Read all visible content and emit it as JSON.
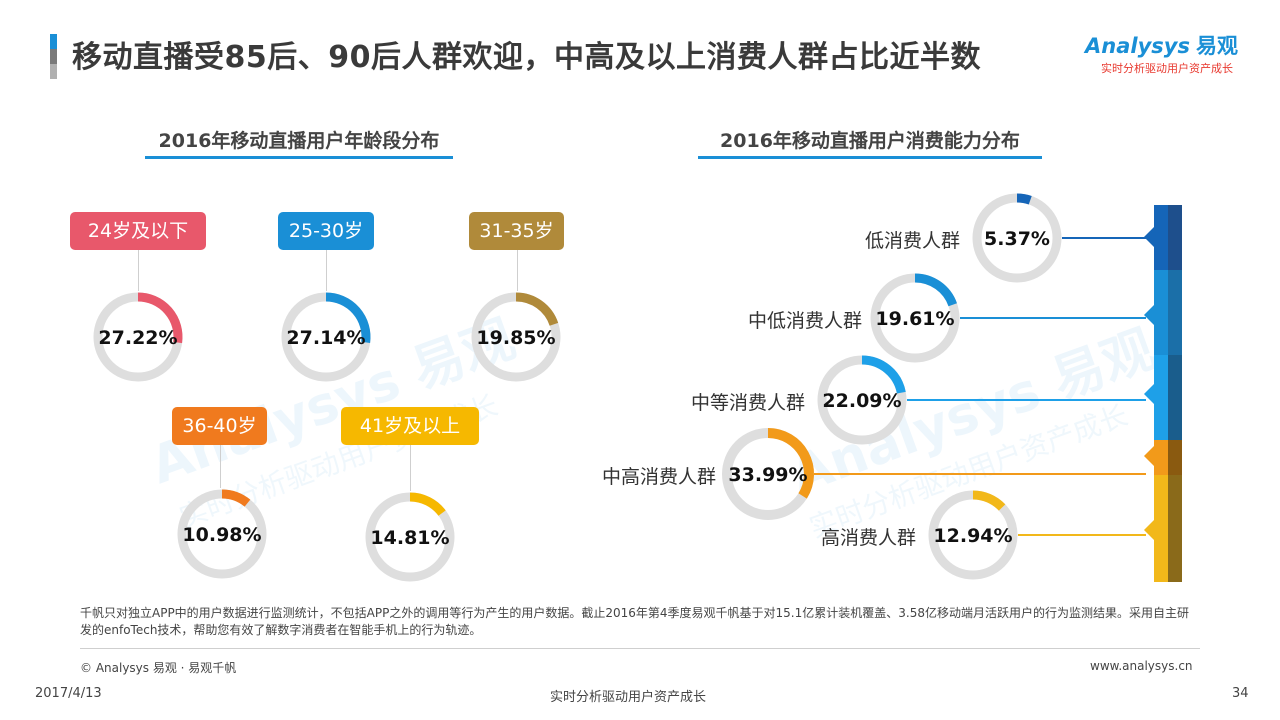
{
  "header": {
    "title": "移动直播受85后、90后人群欢迎，中高及以上消费人群占比近半数",
    "logo_main": "Analysys",
    "logo_cn": "易观",
    "logo_sub": "实时分析驱动用户资产成长"
  },
  "watermark": {
    "main": "Analysys 易观",
    "sub": "实时分析驱动用户资产成长"
  },
  "chart_data": [
    {
      "type": "pie",
      "title": "2016年移动直播用户年龄段分布",
      "categories": [
        "24岁及以下",
        "25-30岁",
        "31-35岁",
        "36-40岁",
        "41岁及以上"
      ],
      "values": [
        27.22,
        27.14,
        19.85,
        10.98,
        14.81
      ],
      "labels": [
        "27.22%",
        "27.14%",
        "19.85%",
        "10.98%",
        "14.81%"
      ],
      "colors": [
        "#e8586b",
        "#1a8fd6",
        "#b08a3a",
        "#f07a1e",
        "#f6b800"
      ]
    },
    {
      "type": "pie",
      "title": "2016年移动直播用户消费能力分布",
      "categories": [
        "低消费人群",
        "中低消费人群",
        "中等消费人群",
        "中高消费人群",
        "高消费人群"
      ],
      "values": [
        5.37,
        19.61,
        22.09,
        33.99,
        12.94
      ],
      "labels": [
        "5.37%",
        "19.61%",
        "22.09%",
        "33.99%",
        "12.94%"
      ],
      "colors": [
        "#1565b8",
        "#1a8fd6",
        "#1ea0e8",
        "#f29a1a",
        "#f2b81a"
      ]
    }
  ],
  "footer": {
    "note": "千帆只对独立APP中的用户数据进行监测统计，不包括APP之外的调用等行为产生的用户数据。截止2016年第4季度易观千帆基于对15.1亿累计装机覆盖、3.58亿移动端月活跃用户的行为监测结果。采用自主研发的enfoTech技术，帮助您有效了解数字消费者在智能手机上的行为轨迹。",
    "copyright": "© Analysys 易观 · 易观千帆",
    "website": "www.analysys.cn",
    "date": "2017/4/13",
    "tagline": "实时分析驱动用户资产成长",
    "page": "34"
  }
}
